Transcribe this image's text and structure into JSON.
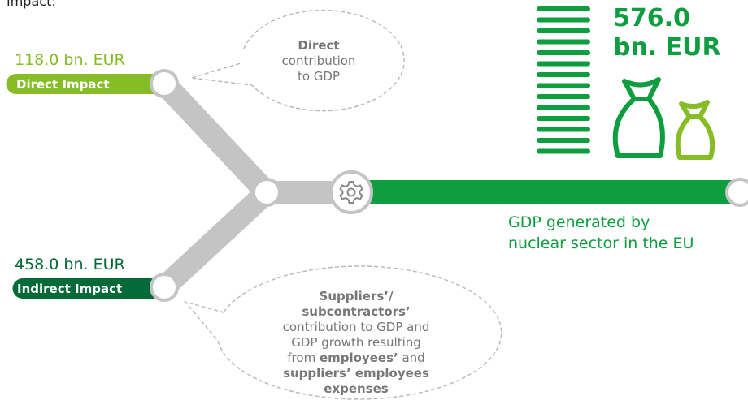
{
  "header": {
    "text": "Impact:"
  },
  "direct": {
    "amount": "118.0 bn. EUR",
    "label": "Direct Impact",
    "bubble": [
      [
        {
          "text": "Direct",
          "bold": true
        }
      ],
      [
        {
          "text": "contribution",
          "bold": false
        }
      ],
      [
        {
          "text": "to GDP",
          "bold": false
        }
      ]
    ]
  },
  "indirect": {
    "amount": "458.0 bn. EUR",
    "label": "Indirect Impact",
    "bubble": [
      [
        {
          "text": "Suppliers’/",
          "bold": true
        }
      ],
      [
        {
          "text": "subcontractors’",
          "bold": true
        }
      ],
      [
        {
          "text": "contribution to GDP and",
          "bold": false
        }
      ],
      [
        {
          "text": "GDP growth resulting",
          "bold": false
        }
      ],
      [
        {
          "text": "from ",
          "bold": false
        },
        {
          "text": "employees’",
          "bold": true
        },
        {
          "text": " and",
          "bold": false
        }
      ],
      [
        {
          "text": "suppliers’ employees",
          "bold": true
        }
      ],
      [
        {
          "text": "expenses",
          "bold": true
        }
      ]
    ]
  },
  "total": {
    "amount_lines": [
      "576.0",
      "bn. EUR"
    ],
    "caption_lines": [
      "GDP generated by",
      "nuclear sector in the EU"
    ]
  }
}
